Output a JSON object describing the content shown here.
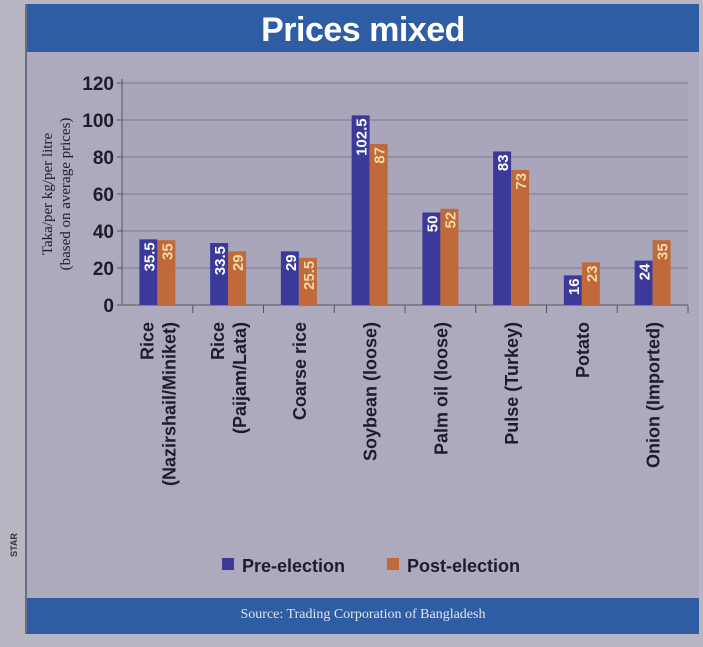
{
  "chart_data": {
    "type": "bar",
    "title": "Prices mixed",
    "ylabel": "Taka/per kg/per litre (based on average prices)",
    "ylabel_lines": [
      "Taka/per kg/per litre",
      "(based on average prices)"
    ],
    "xlabel": "",
    "ylim": [
      0,
      120
    ],
    "yticks": [
      0,
      20,
      40,
      60,
      80,
      100,
      120
    ],
    "grid": true,
    "legend_position": "bottom",
    "categories": [
      [
        "Rice",
        "(Nazirshail/Miniket)"
      ],
      [
        "Rice",
        "(Paijam/Lata)"
      ],
      [
        "Coarse rice"
      ],
      [
        "Soybean (loose)"
      ],
      [
        "Palm oil (loose)"
      ],
      [
        "Pulse (Turkey)"
      ],
      [
        "Potato"
      ],
      [
        "Onion (Imported)"
      ]
    ],
    "series": [
      {
        "name": "Pre-election",
        "color": "#3b3a9a",
        "values": [
          35.5,
          33.5,
          29,
          102.5,
          50,
          83,
          16,
          24
        ]
      },
      {
        "name": "Post-election",
        "color": "#c0693a",
        "values": [
          35,
          29,
          25.5,
          87,
          52,
          73,
          23,
          35
        ]
      }
    ],
    "source": "Source: Trading Corporation of Bangladesh"
  },
  "side_note": "STAR"
}
